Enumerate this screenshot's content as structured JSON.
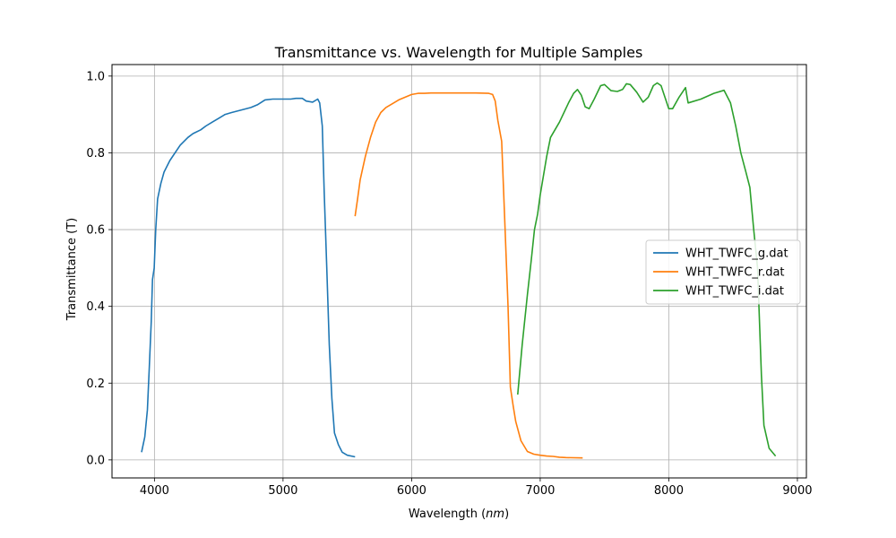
{
  "chart_data": {
    "type": "line",
    "title": "Transmittance vs. Wavelength for Multiple Samples",
    "xlabel_prefix": "Wavelength (",
    "xlabel_unit": "nm",
    "xlabel_suffix": ")",
    "ylabel": "Transmittance (T)",
    "xlim": [
      3670,
      9070
    ],
    "ylim": [
      -0.047,
      1.03
    ],
    "xticks": [
      4000,
      5000,
      6000,
      7000,
      8000,
      9000
    ],
    "xtick_labels": [
      "4000",
      "5000",
      "6000",
      "7000",
      "8000",
      "9000"
    ],
    "yticks": [
      0.0,
      0.2,
      0.4,
      0.6,
      0.8,
      1.0
    ],
    "ytick_labels": [
      "0.0",
      "0.2",
      "0.4",
      "0.6",
      "0.8",
      "1.0"
    ],
    "grid": true,
    "legend_position": "center-right",
    "series": [
      {
        "name": "WHT_TWFC_g.dat",
        "color": "#1f77b4",
        "points": [
          [
            3900,
            0.02
          ],
          [
            3925,
            0.06
          ],
          [
            3945,
            0.13
          ],
          [
            3960,
            0.24
          ],
          [
            3975,
            0.36
          ],
          [
            3985,
            0.47
          ],
          [
            3998,
            0.5
          ],
          [
            4010,
            0.6
          ],
          [
            4025,
            0.68
          ],
          [
            4050,
            0.72
          ],
          [
            4075,
            0.75
          ],
          [
            4120,
            0.78
          ],
          [
            4200,
            0.82
          ],
          [
            4260,
            0.84
          ],
          [
            4300,
            0.85
          ],
          [
            4360,
            0.86
          ],
          [
            4400,
            0.87
          ],
          [
            4450,
            0.88
          ],
          [
            4500,
            0.89
          ],
          [
            4550,
            0.9
          ],
          [
            4600,
            0.905
          ],
          [
            4680,
            0.912
          ],
          [
            4750,
            0.918
          ],
          [
            4800,
            0.925
          ],
          [
            4860,
            0.938
          ],
          [
            4920,
            0.94
          ],
          [
            5000,
            0.94
          ],
          [
            5060,
            0.94
          ],
          [
            5100,
            0.942
          ],
          [
            5150,
            0.942
          ],
          [
            5180,
            0.935
          ],
          [
            5230,
            0.932
          ],
          [
            5270,
            0.94
          ],
          [
            5285,
            0.93
          ],
          [
            5305,
            0.87
          ],
          [
            5320,
            0.7
          ],
          [
            5340,
            0.5
          ],
          [
            5360,
            0.3
          ],
          [
            5380,
            0.16
          ],
          [
            5400,
            0.07
          ],
          [
            5430,
            0.04
          ],
          [
            5460,
            0.02
          ],
          [
            5500,
            0.012
          ],
          [
            5560,
            0.008
          ]
        ]
      },
      {
        "name": "WHT_TWFC_r.dat",
        "color": "#ff7f0e",
        "points": [
          [
            5560,
            0.635
          ],
          [
            5580,
            0.68
          ],
          [
            5600,
            0.73
          ],
          [
            5640,
            0.79
          ],
          [
            5680,
            0.84
          ],
          [
            5720,
            0.88
          ],
          [
            5760,
            0.905
          ],
          [
            5800,
            0.918
          ],
          [
            5850,
            0.928
          ],
          [
            5900,
            0.938
          ],
          [
            5950,
            0.945
          ],
          [
            6000,
            0.952
          ],
          [
            6050,
            0.955
          ],
          [
            6100,
            0.955
          ],
          [
            6150,
            0.956
          ],
          [
            6200,
            0.956
          ],
          [
            6300,
            0.956
          ],
          [
            6400,
            0.956
          ],
          [
            6500,
            0.956
          ],
          [
            6600,
            0.955
          ],
          [
            6630,
            0.952
          ],
          [
            6650,
            0.935
          ],
          [
            6670,
            0.885
          ],
          [
            6700,
            0.83
          ],
          [
            6725,
            0.62
          ],
          [
            6750,
            0.4
          ],
          [
            6768,
            0.19
          ],
          [
            6790,
            0.14
          ],
          [
            6810,
            0.1
          ],
          [
            6850,
            0.05
          ],
          [
            6900,
            0.022
          ],
          [
            6950,
            0.015
          ],
          [
            7000,
            0.012
          ],
          [
            7050,
            0.01
          ],
          [
            7100,
            0.009
          ],
          [
            7150,
            0.007
          ],
          [
            7200,
            0.006
          ],
          [
            7330,
            0.005
          ]
        ]
      },
      {
        "name": "WHT_TWFC_i.dat",
        "color": "#2ca02c",
        "points": [
          [
            6825,
            0.17
          ],
          [
            6860,
            0.3
          ],
          [
            6900,
            0.43
          ],
          [
            6930,
            0.52
          ],
          [
            6955,
            0.6
          ],
          [
            6980,
            0.64
          ],
          [
            7000,
            0.69
          ],
          [
            7050,
            0.79
          ],
          [
            7080,
            0.84
          ],
          [
            7150,
            0.88
          ],
          [
            7220,
            0.93
          ],
          [
            7260,
            0.955
          ],
          [
            7290,
            0.965
          ],
          [
            7320,
            0.95
          ],
          [
            7350,
            0.92
          ],
          [
            7380,
            0.915
          ],
          [
            7420,
            0.94
          ],
          [
            7470,
            0.975
          ],
          [
            7500,
            0.978
          ],
          [
            7550,
            0.962
          ],
          [
            7600,
            0.96
          ],
          [
            7640,
            0.965
          ],
          [
            7670,
            0.98
          ],
          [
            7700,
            0.978
          ],
          [
            7750,
            0.958
          ],
          [
            7800,
            0.932
          ],
          [
            7840,
            0.945
          ],
          [
            7880,
            0.975
          ],
          [
            7910,
            0.982
          ],
          [
            7940,
            0.975
          ],
          [
            7970,
            0.945
          ],
          [
            8000,
            0.915
          ],
          [
            8030,
            0.915
          ],
          [
            8080,
            0.945
          ],
          [
            8130,
            0.97
          ],
          [
            8140,
            0.95
          ],
          [
            8150,
            0.93
          ],
          [
            8250,
            0.94
          ],
          [
            8350,
            0.955
          ],
          [
            8430,
            0.963
          ],
          [
            8480,
            0.93
          ],
          [
            8520,
            0.87
          ],
          [
            8560,
            0.8
          ],
          [
            8600,
            0.75
          ],
          [
            8630,
            0.71
          ],
          [
            8660,
            0.6
          ],
          [
            8690,
            0.5
          ],
          [
            8720,
            0.22
          ],
          [
            8740,
            0.09
          ],
          [
            8760,
            0.06
          ],
          [
            8780,
            0.03
          ],
          [
            8830,
            0.01
          ]
        ]
      }
    ]
  }
}
